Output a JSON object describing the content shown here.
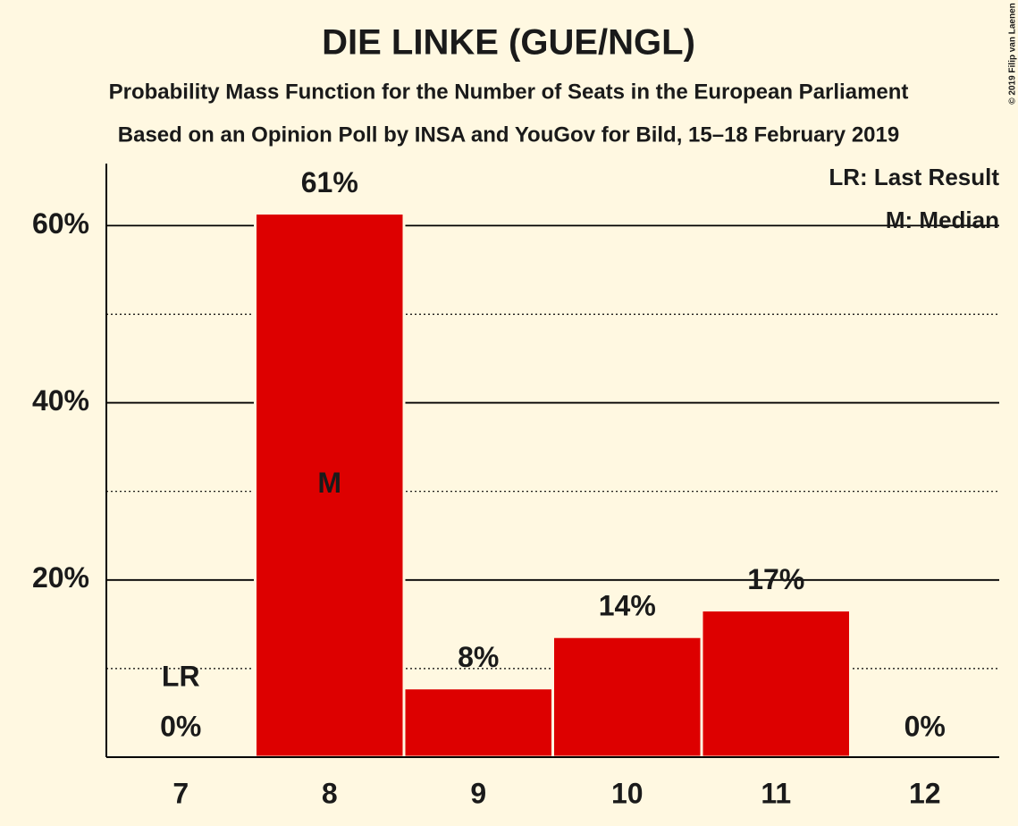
{
  "chart_data": {
    "type": "bar",
    "title": "DIE LINKE (GUE/NGL)",
    "subtitle": "Probability Mass Function for the Number of Seats in the European Parliament",
    "subtitle2": "Based on an Opinion Poll by INSA and YouGov for Bild, 15–18 February 2019",
    "categories": [
      "7",
      "8",
      "9",
      "10",
      "11",
      "12"
    ],
    "values": [
      0,
      61.4,
      7.8,
      13.6,
      16.6,
      0
    ],
    "value_labels": [
      "0%",
      "61%",
      "8%",
      "14%",
      "17%",
      "0%"
    ],
    "color": "#dd0000",
    "ylim": [
      0,
      67
    ],
    "yticks": [
      {
        "value": 20,
        "label": "20%"
      },
      {
        "value": 40,
        "label": "40%"
      },
      {
        "value": 60,
        "label": "60%"
      }
    ],
    "minor_yticks": [
      10,
      30,
      50
    ],
    "grid": true,
    "annotations": [
      {
        "text": "LR",
        "category": "7"
      },
      {
        "text": "M",
        "category": "8"
      }
    ],
    "legend": [
      "LR: Last Result",
      "M: Median"
    ],
    "legend_position": "top-right",
    "copyright": "© 2019 Filip van Laenen"
  }
}
